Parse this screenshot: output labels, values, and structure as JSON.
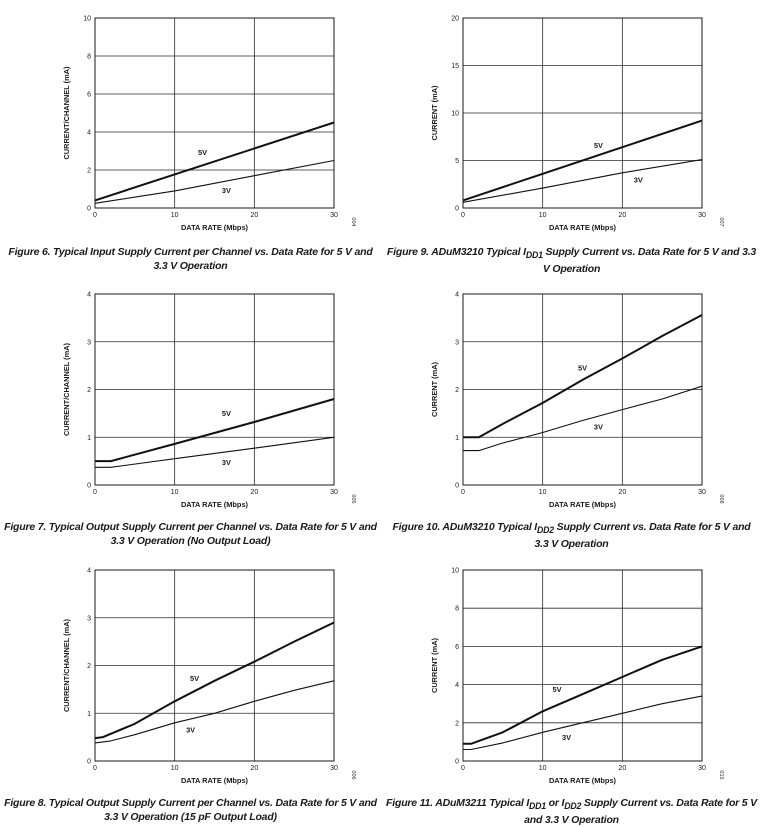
{
  "chart_data": [
    {
      "type": "line",
      "caption": "Figure 6. Typical Input Supply Current per Channel vs. Data Rate for 5 V and 3.3 V Operation",
      "xlabel": "DATA RATE (Mbps)",
      "ylabel": "CURRENT/CHANNEL (mA)",
      "xlim": [
        0,
        30
      ],
      "ylim": [
        0,
        10
      ],
      "xticks": [
        0,
        10,
        20,
        30
      ],
      "yticks": [
        0,
        2,
        4,
        6,
        8,
        10
      ],
      "grid": true,
      "fig_id": "004",
      "series": [
        {
          "name": "5V",
          "stroke": "thick",
          "label_at": [
            13.5,
            2.8
          ],
          "points": [
            [
              0,
              0.4
            ],
            [
              30,
              4.5
            ]
          ]
        },
        {
          "name": "3V",
          "stroke": "thin",
          "label_at": [
            16.5,
            0.8
          ],
          "points": [
            [
              0,
              0.25
            ],
            [
              10,
              0.9
            ],
            [
              20,
              1.7
            ],
            [
              30,
              2.5
            ]
          ]
        }
      ]
    },
    {
      "type": "line",
      "caption": "Figure 9. ADuM3210 Typical I<sub>DD1</sub> Supply Current vs. Data Rate for 5 V and 3.3 V Operation",
      "xlabel": "DATA RATE (Mbps)",
      "ylabel": "CURRENT (mA)",
      "xlim": [
        0,
        30
      ],
      "ylim": [
        0,
        20
      ],
      "xticks": [
        0,
        10,
        20,
        30
      ],
      "yticks": [
        0,
        5,
        10,
        15,
        20
      ],
      "grid": true,
      "fig_id": "007",
      "series": [
        {
          "name": "5V",
          "stroke": "thick",
          "label_at": [
            17,
            6.3
          ],
          "points": [
            [
              0,
              0.8
            ],
            [
              10,
              3.6
            ],
            [
              20,
              6.4
            ],
            [
              30,
              9.2
            ]
          ]
        },
        {
          "name": "3V",
          "stroke": "thin",
          "label_at": [
            22,
            2.7
          ],
          "points": [
            [
              0,
              0.6
            ],
            [
              10,
              2.1
            ],
            [
              20,
              3.7
            ],
            [
              30,
              5.1
            ]
          ]
        }
      ]
    },
    {
      "type": "line",
      "caption": "Figure 7. Typical Output Supply Current per Channel vs. Data Rate for 5 V and 3.3 V Operation (No Output Load)",
      "xlabel": "DATA RATE (Mbps)",
      "ylabel": "CURRENT/CHANNEL (mA)",
      "xlim": [
        0,
        30
      ],
      "ylim": [
        0,
        4
      ],
      "xticks": [
        0,
        10,
        20,
        30
      ],
      "yticks": [
        0,
        1,
        2,
        3,
        4
      ],
      "grid": true,
      "fig_id": "005",
      "series": [
        {
          "name": "5V",
          "stroke": "thick",
          "label_at": [
            16.5,
            1.45
          ],
          "points": [
            [
              0,
              0.5
            ],
            [
              2,
              0.5
            ],
            [
              10,
              0.86
            ],
            [
              20,
              1.32
            ],
            [
              30,
              1.8
            ]
          ]
        },
        {
          "name": "3V",
          "stroke": "thin",
          "label_at": [
            16.5,
            0.42
          ],
          "points": [
            [
              0,
              0.37
            ],
            [
              2,
              0.37
            ],
            [
              10,
              0.55
            ],
            [
              20,
              0.77
            ],
            [
              30,
              1.0
            ]
          ]
        }
      ]
    },
    {
      "type": "line",
      "caption": "Figure 10. ADuM3210 Typical I<sub>DD2</sub> Supply Current vs. Data Rate for 5 V and 3.3 V Operation",
      "xlabel": "DATA RATE (Mbps)",
      "ylabel": "CURRENT (mA)",
      "xlim": [
        0,
        30
      ],
      "ylim": [
        0,
        4
      ],
      "xticks": [
        0,
        10,
        20,
        30
      ],
      "yticks": [
        0,
        1,
        2,
        3,
        4
      ],
      "grid": true,
      "fig_id": "008",
      "series": [
        {
          "name": "5V",
          "stroke": "thick",
          "label_at": [
            15,
            2.4
          ],
          "points": [
            [
              0,
              1.0
            ],
            [
              2,
              1.0
            ],
            [
              5,
              1.28
            ],
            [
              10,
              1.72
            ],
            [
              15,
              2.2
            ],
            [
              20,
              2.65
            ],
            [
              25,
              3.12
            ],
            [
              30,
              3.56
            ]
          ]
        },
        {
          "name": "3V",
          "stroke": "thin",
          "label_at": [
            17,
            1.16
          ],
          "points": [
            [
              0,
              0.72
            ],
            [
              2,
              0.72
            ],
            [
              5,
              0.88
            ],
            [
              10,
              1.1
            ],
            [
              15,
              1.35
            ],
            [
              20,
              1.58
            ],
            [
              25,
              1.8
            ],
            [
              30,
              2.07
            ]
          ]
        }
      ]
    },
    {
      "type": "line",
      "caption": "Figure 8. Typical Output Supply Current per Channel vs. Data Rate for 5 V and 3.3 V Operation (15 pF Output Load)",
      "xlabel": "DATA RATE (Mbps)",
      "ylabel": "CURRENT/CHANNEL (mA)",
      "xlim": [
        0,
        30
      ],
      "ylim": [
        0,
        4
      ],
      "xticks": [
        0,
        10,
        20,
        30
      ],
      "yticks": [
        0,
        1,
        2,
        3,
        4
      ],
      "grid": true,
      "fig_id": "006",
      "series": [
        {
          "name": "5V",
          "stroke": "thick",
          "label_at": [
            12.5,
            1.68
          ],
          "points": [
            [
              0,
              0.48
            ],
            [
              1,
              0.5
            ],
            [
              5,
              0.78
            ],
            [
              10,
              1.25
            ],
            [
              15,
              1.68
            ],
            [
              20,
              2.08
            ],
            [
              25,
              2.5
            ],
            [
              30,
              2.9
            ]
          ]
        },
        {
          "name": "3V",
          "stroke": "thin",
          "label_at": [
            12,
            0.6
          ],
          "points": [
            [
              0,
              0.38
            ],
            [
              2,
              0.42
            ],
            [
              5,
              0.55
            ],
            [
              10,
              0.8
            ],
            [
              15,
              1.0
            ],
            [
              20,
              1.25
            ],
            [
              25,
              1.48
            ],
            [
              30,
              1.68
            ]
          ]
        }
      ]
    },
    {
      "type": "line",
      "caption": "Figure 11. ADuM3211 Typical I<sub>DD1</sub> or I<sub>DD2</sub> Supply Current vs. Data Rate for 5 V and 3.3 V Operation",
      "xlabel": "DATA RATE (Mbps)",
      "ylabel": "CURRENT (mA)",
      "xlim": [
        0,
        30
      ],
      "ylim": [
        0,
        10
      ],
      "xticks": [
        0,
        10,
        20,
        30
      ],
      "yticks": [
        0,
        2,
        4,
        6,
        8,
        10
      ],
      "grid": true,
      "fig_id": "015",
      "series": [
        {
          "name": "5V",
          "stroke": "thick",
          "label_at": [
            11.8,
            3.6
          ],
          "points": [
            [
              0,
              0.9
            ],
            [
              1,
              0.9
            ],
            [
              5,
              1.5
            ],
            [
              10,
              2.6
            ],
            [
              15,
              3.5
            ],
            [
              20,
              4.4
            ],
            [
              25,
              5.3
            ],
            [
              30,
              6.0
            ]
          ]
        },
        {
          "name": "3V",
          "stroke": "thin",
          "label_at": [
            13,
            1.1
          ],
          "points": [
            [
              0,
              0.6
            ],
            [
              1,
              0.6
            ],
            [
              5,
              0.95
            ],
            [
              10,
              1.5
            ],
            [
              15,
              2.0
            ],
            [
              20,
              2.5
            ],
            [
              25,
              3.0
            ],
            [
              30,
              3.4
            ]
          ]
        }
      ]
    }
  ]
}
